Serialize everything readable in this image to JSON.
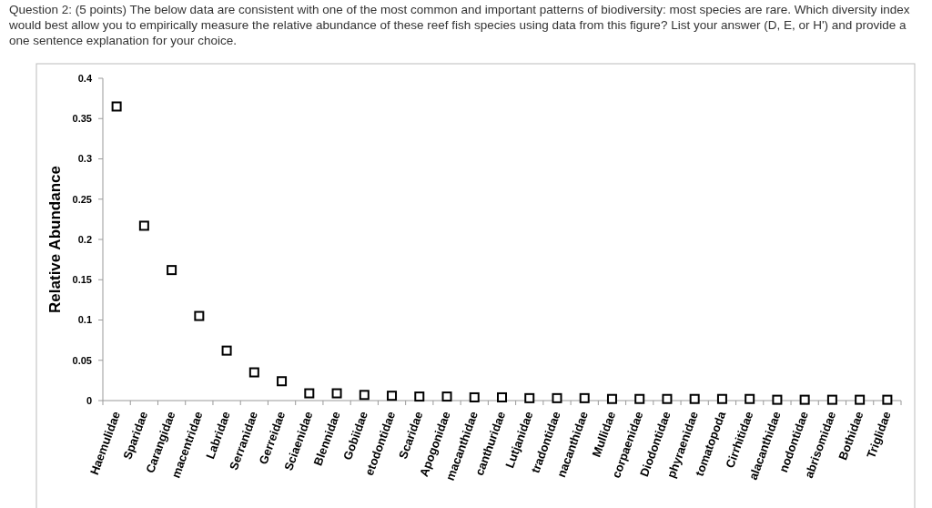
{
  "chart_data": {
    "type": "scatter",
    "title": "Question 2: (5 points) The below data are consistent with one of the most common and important patterns of biodiversity: most species are rare. Which diversity index would best allow you to empirically measure the relative abundance of these reef fish species using data from this figure? List your answer (D, E, or H') and provide a one sentence explanation for your choice.",
    "ylabel": "Relative Abundance",
    "categories": [
      "Haemulidae",
      "Sparidae",
      "Carangidae",
      "macentridae",
      "Labridae",
      "Serranidae",
      "Gerreidae",
      "Sciaenidae",
      "Blennidae",
      "Gobiidae",
      "etodontidae",
      "Scaridae",
      "Apogonidae",
      "macanthidae",
      "canthuridae",
      "Lutjanidae",
      "tradontidae",
      "nacanthidae",
      "Mullidae",
      "corpaenidae",
      "Diodontidae",
      "phyraenidae",
      "tomatopoda",
      "Cirrhitidae",
      "alacanthidae",
      "nodontidae",
      "abrisomidae",
      "Bothidae",
      "Triglidae"
    ],
    "values": [
      0.365,
      0.217,
      0.162,
      0.105,
      0.062,
      0.035,
      0.024,
      0.009,
      0.009,
      0.007,
      0.006,
      0.005,
      0.005,
      0.004,
      0.004,
      0.003,
      0.003,
      0.003,
      0.002,
      0.002,
      0.002,
      0.002,
      0.002,
      0.002,
      0.001,
      0.001,
      0.001,
      0.001,
      0.001
    ],
    "color": "#000000",
    "marker": "square",
    "ylim": [
      0,
      0.4
    ],
    "yticks": [
      0,
      0.05,
      0.1,
      0.15,
      0.2,
      0.25,
      0.3,
      0.35,
      0.4
    ],
    "grid": false
  }
}
